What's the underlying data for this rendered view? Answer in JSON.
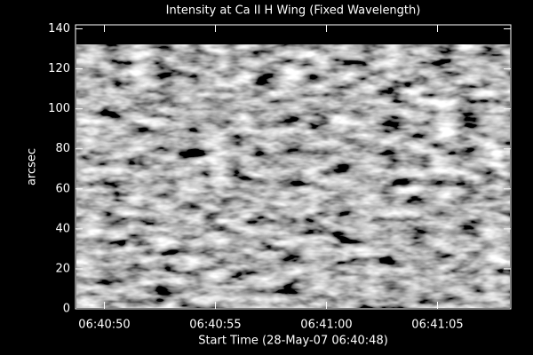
{
  "chart_data": {
    "type": "image",
    "title": "Intensity at Ca II H Wing (Fixed Wavelength)",
    "x_label": "Start Time (28-May-07 06:40:48)",
    "y_label": "arcsec",
    "xlim": [
      0.7,
      20.3
    ],
    "xticks": [
      {
        "value": 2,
        "label": "06:40:50"
      },
      {
        "value": 7,
        "label": "06:40:55"
      },
      {
        "value": 12,
        "label": "06:41:00"
      },
      {
        "value": 17,
        "label": "06:41:05"
      }
    ],
    "ylim": [
      0,
      142
    ],
    "yticks": [
      0,
      20,
      40,
      60,
      80,
      100,
      120,
      140
    ]
  }
}
